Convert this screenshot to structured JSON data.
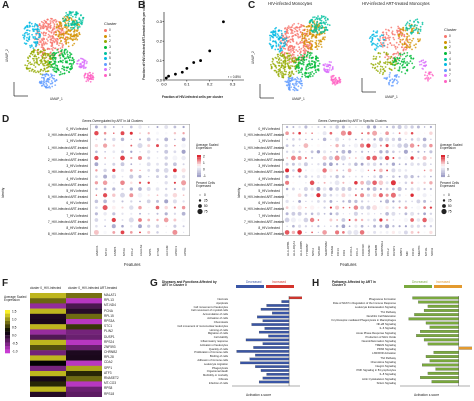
{
  "panels": {
    "A": {
      "label": "A",
      "xlabel": "UMAP_1",
      "ylabel": "UMAP_2",
      "legend_title": "Cluster",
      "clusters": [
        "0",
        "1",
        "2",
        "3",
        "4",
        "5",
        "6",
        "7",
        "8"
      ],
      "colors": [
        "#f8766d",
        "#d39200",
        "#93aa00",
        "#00ba38",
        "#00c19f",
        "#00b9e3",
        "#619cff",
        "#db72fb",
        "#ff61c3"
      ]
    },
    "B": {
      "label": "B",
      "ylabel": "Fraction of HIV-infected ART-treated cells per cluster",
      "xlabel": "Fraction of HIV-infected cells per cluster",
      "annotation": "r = 0.894",
      "xticks": [
        "0.0",
        "0.1",
        "0.2",
        "0.3"
      ],
      "yticks": [
        "0.0",
        "0.1",
        "0.2",
        "0.3"
      ],
      "chart_data": {
        "type": "scatter",
        "xlabel": "Fraction of HIV-infected cells per cluster",
        "ylabel": "Fraction of HIV-infected ART-treated cells per cluster",
        "xlim": [
          0,
          0.35
        ],
        "ylim": [
          0,
          0.35
        ],
        "points": [
          {
            "x": 0.01,
            "y": 0.01
          },
          {
            "x": 0.02,
            "y": 0.02
          },
          {
            "x": 0.05,
            "y": 0.03
          },
          {
            "x": 0.08,
            "y": 0.04
          },
          {
            "x": 0.1,
            "y": 0.06
          },
          {
            "x": 0.13,
            "y": 0.09
          },
          {
            "x": 0.16,
            "y": 0.1
          },
          {
            "x": 0.2,
            "y": 0.15
          },
          {
            "x": 0.26,
            "y": 0.3
          }
        ]
      }
    },
    "C": {
      "label": "C",
      "title_left": "HIV-infected Monocytes",
      "title_right": "HIV-infected ART-treated Monocytes",
      "xlabel": "UMAP_1",
      "ylabel": "UMAP_2",
      "legend_title": "Cluster"
    },
    "D": {
      "label": "D",
      "title": "Genes Overegulated by ART in All Clusters",
      "ylabel": "Identity",
      "xlabel": "Features",
      "legend_expr": "Average Scaled Expression",
      "legend_pct": "Percent Cells Expressed",
      "pct_ticks": [
        "0",
        "25",
        "50",
        "75"
      ],
      "expr_ticks": [
        "2",
        "1",
        "0",
        "-1"
      ],
      "rows": [
        "0_HIV-infected",
        "0_HIV-infected ART-treated",
        "1_HIV-infected",
        "1_HIV-infected ART-treated",
        "2_HIV-infected",
        "2_HIV-infected ART-treated",
        "3_HIV-infected",
        "3_HIV-infected ART-treated",
        "4_HIV-infected",
        "4_HIV-infected ART-treated",
        "5_HIV-infected",
        "5_HIV-infected ART-treated",
        "6_HIV-infected",
        "6_HIV-infected ART-treated",
        "7_HIV-infected",
        "7_HIV-infected ART-treated",
        "8_HIV-infected",
        "8_HIV-infected ART-treated"
      ],
      "genes": [
        "HMOX1",
        "MT1X",
        "FABP4",
        "MT2A",
        "CCL2",
        "LGALS3",
        "SPP1",
        "CTSD",
        "ALCAM",
        "APOC1",
        "APOE"
      ]
    },
    "E": {
      "label": "E",
      "title": "Genes Overegulated by ART in Specific Clusters",
      "ylabel": "Identity",
      "xlabel": "Features",
      "legend_expr": "Average Scaled Expression",
      "legend_pct": "Percent Cells Expressed",
      "pct_ticks": [
        "0",
        "25",
        "50",
        "75"
      ],
      "expr_ticks": [
        "2",
        "1",
        "0",
        "-1"
      ],
      "genes": [
        "HLA-DPB1",
        "HLA-DQA1",
        "HLA-DRB5",
        "TYROBP",
        "NPC2",
        "SPARC",
        "SERPINB2",
        "TREM2",
        "CD14",
        "CD9",
        "CXCL1",
        "CCL3",
        "CDKN1C",
        "FAM26F",
        "GPNMB",
        "SERPING1",
        "CCL2",
        "DUSP1",
        "GBP1",
        "MIF",
        "CD36",
        "MERTK",
        "MT1G",
        "SOD2"
      ]
    },
    "F": {
      "label": "F",
      "legend_title": "Average Scaled Expression",
      "legend_ticks": [
        "1.5",
        "1.0",
        "0.5",
        "0.0",
        "-0.5",
        "-1.0"
      ],
      "col_labels": [
        "cluster 0_HIV-infected",
        "cluster 0_HIV-infected ART-treated"
      ],
      "genes": [
        "MALAT1",
        "RPL13",
        "MT-ND4",
        "PCNA",
        "RPL15",
        "RPS3A",
        "STC1",
        "PLIN2",
        "DUSP1",
        "RPS24",
        "ZNF593",
        "CHRNB2",
        "RPL28",
        "CDA2",
        "SPP1",
        "ATF3",
        "RNASET2",
        "MT-CO3",
        "RPS8",
        "RPS18"
      ]
    },
    "G": {
      "label": "G",
      "title": "Diseases and Functions Affected by ART in Cluster 0",
      "legend_decreased": "Decreased",
      "legend_increased": "Increased",
      "xlabel": "Activation z-score",
      "chart_data": {
        "type": "bar",
        "title": "Diseases and Functions Affected by ART in Cluster 0",
        "xlabel": "Activation z-score",
        "categories": [
          "Necrosis",
          "Apoptosis",
          "Cell movement of leukocytes",
          "Cell movement of myeloid cells",
          "Accumulation of cells",
          "Activation of cells",
          "Chemotaxis",
          "Cell movement of mononuclear leukocytes",
          "Homing of cells",
          "Migration of cells",
          "Cell viability",
          "Inflammatory response",
          "Activation of leukocytes",
          "Quantity of cells",
          "Proliferation of immune cells",
          "Binding of cells",
          "Adhesion of immune cells",
          "Leukocyte migration",
          "Phagocytosis",
          "Organismal death",
          "Morbidity or mortality",
          "Fibrosis",
          "Infection of cells"
        ],
        "values": [
          1.8,
          -0.4,
          -1.2,
          -1.5,
          -0.9,
          -1.7,
          -1.4,
          -2.0,
          -1.3,
          -1.6,
          -1.1,
          -2.3,
          -1.4,
          -1.9,
          -2.8,
          -1.8,
          -2.1,
          -2.6,
          -1.8,
          -1.5,
          -1.2,
          -1.4,
          -1.6
        ]
      }
    },
    "H": {
      "label": "H",
      "title": "Pathways Affected by ART in Cluster 0",
      "legend_decreased": "Decreased",
      "legend_increased": "Increased",
      "xlabel": "Activation z-score",
      "chart_data": {
        "type": "bar",
        "title": "Pathways Affected by ART in Cluster 0",
        "xlabel": "Activation z-score",
        "categories": [
          "Phagosome Formation",
          "Role of NFAT in Regulation of the Immune Response",
          "Leukocyte Extravasation Signaling",
          "Th1 Pathway",
          "Dendritic Cell Maturation",
          "Fcγ Receptor-mediated Phagocytosis in Macrophages",
          "NF-κB Signaling",
          "IL-6 Signaling",
          "Acute Phase Response Signaling",
          "Production of Nitric Oxide",
          "Neuroinflammation Signaling",
          "TREM1 Signaling",
          "PPAR Signaling",
          "LXR/RXR Activation",
          "Th2 Pathway",
          "Chemokine Signaling",
          "Integrin Signaling",
          "PI3K Signaling in B Lymphocytes",
          "IL-8 Signaling",
          "Actin Cytoskeleton Signaling",
          "Sirtuin Signaling"
        ],
        "values": [
          -2.4,
          -2.1,
          -1.6,
          -1.8,
          -2.3,
          -2.6,
          -1.7,
          -1.5,
          -2.0,
          -2.2,
          -1.8,
          -1.6,
          1.4,
          -1.3,
          -1.7,
          -1.5,
          -1.9,
          -1.2,
          -1.6,
          -2.0,
          -1.4
        ]
      }
    }
  }
}
